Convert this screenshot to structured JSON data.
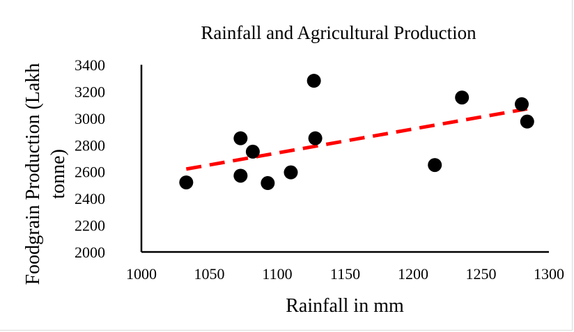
{
  "chart_data": {
    "type": "scatter",
    "title": "Rainfall and Agricultural Production",
    "xlabel": "Rainfall in mm",
    "ylabel_lines": [
      "Foodgrain Production (Lakh",
      "tonne)"
    ],
    "xlim": [
      1000,
      1300
    ],
    "ylim": [
      2000,
      3400
    ],
    "xticks": [
      "1000",
      "1050",
      "1100",
      "1150",
      "1200",
      "1250",
      "1300"
    ],
    "yticks": [
      "2000",
      "2200",
      "2400",
      "2600",
      "2800",
      "3000",
      "3200",
      "3400"
    ],
    "points": [
      {
        "x": 1033,
        "y": 2520
      },
      {
        "x": 1073,
        "y": 2850
      },
      {
        "x": 1073,
        "y": 2570
      },
      {
        "x": 1082,
        "y": 2750
      },
      {
        "x": 1093,
        "y": 2515
      },
      {
        "x": 1110,
        "y": 2595
      },
      {
        "x": 1127,
        "y": 3280
      },
      {
        "x": 1128,
        "y": 2850
      },
      {
        "x": 1216,
        "y": 2650
      },
      {
        "x": 1236,
        "y": 3155
      },
      {
        "x": 1280,
        "y": 3105
      },
      {
        "x": 1284,
        "y": 2975
      }
    ],
    "trendline": {
      "x": [
        1033,
        1284
      ],
      "y": [
        2620,
        3070
      ],
      "style": "dashed"
    },
    "colors": {
      "points": "#000000",
      "trendline": "#ff0000",
      "axis": "#000000"
    },
    "grid": false,
    "legend": "none"
  }
}
